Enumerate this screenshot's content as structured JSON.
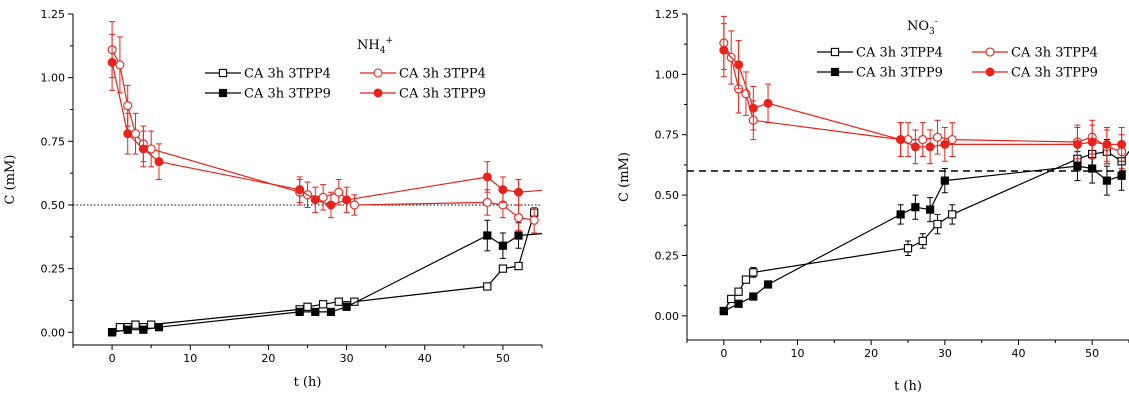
{
  "chart_data": [
    {
      "type": "line",
      "annotation": {
        "main": "NH",
        "sub": "4",
        "sup": "+"
      },
      "xlabel": "t (h)",
      "ylabel": "C (mM)",
      "xlim": [
        -5,
        55
      ],
      "ylim": [
        -0.05,
        1.25
      ],
      "xticks": [
        0,
        10,
        20,
        30,
        40,
        50
      ],
      "yticks": [
        0.0,
        0.25,
        0.5,
        0.75,
        1.0,
        1.25
      ],
      "ytick_labels": [
        "0.00",
        "0.25",
        "0.50",
        "0.75",
        "1.00",
        "1.25"
      ],
      "reference_line": {
        "y": 0.5,
        "style": "dotted"
      },
      "legend": {
        "placement": "top-center",
        "columns": 2
      },
      "series": [
        {
          "name": "CA 3h 3TPP4",
          "color": "#000000",
          "marker": "square-open",
          "x": [
            0,
            1,
            2,
            3,
            4,
            5,
            24,
            25,
            27,
            29,
            31,
            48,
            50,
            52,
            54
          ],
          "y": [
            0.0,
            0.02,
            0.02,
            0.03,
            0.02,
            0.03,
            0.09,
            0.1,
            0.11,
            0.12,
            0.12,
            0.18,
            0.25,
            0.26,
            0.47
          ],
          "err": [
            0.01,
            0.01,
            0.01,
            0.01,
            0.01,
            0.01,
            0.01,
            0.01,
            0.01,
            0.01,
            0.01,
            0.01,
            0.01,
            0.01,
            0.01
          ]
        },
        {
          "name": "CA 3h 3TPP9",
          "color": "#000000",
          "marker": "square-filled",
          "x": [
            0,
            2,
            4,
            6,
            24,
            26,
            28,
            30,
            48,
            50,
            52,
            56
          ],
          "y": [
            0.0,
            0.01,
            0.01,
            0.02,
            0.08,
            0.08,
            0.08,
            0.1,
            0.38,
            0.34,
            0.38,
            0.39
          ],
          "err": [
            0.01,
            0.01,
            0.01,
            0.01,
            0.01,
            0.01,
            0.01,
            0.01,
            0.06,
            0.05,
            0.05,
            0.0
          ]
        },
        {
          "name": "CA 3h 3TPP4",
          "color": "#e8231b",
          "marker": "circle-open",
          "x": [
            0,
            1,
            2,
            3,
            4,
            5,
            24,
            25,
            27,
            29,
            31,
            48,
            50,
            52,
            54
          ],
          "y": [
            1.11,
            1.05,
            0.89,
            0.78,
            0.74,
            0.72,
            0.55,
            0.54,
            0.53,
            0.55,
            0.5,
            0.51,
            0.5,
            0.45,
            0.44
          ],
          "err": [
            0.11,
            0.11,
            0.08,
            0.08,
            0.07,
            0.07,
            0.05,
            0.05,
            0.05,
            0.05,
            0.04,
            0.05,
            0.05,
            0.05,
            0.05
          ]
        },
        {
          "name": "CA 3h 3TPP9",
          "color": "#e8231b",
          "marker": "circle-filled",
          "x": [
            0,
            2,
            4,
            6,
            24,
            26,
            28,
            30,
            48,
            50,
            52,
            56
          ],
          "y": [
            1.06,
            0.78,
            0.72,
            0.67,
            0.56,
            0.52,
            0.5,
            0.52,
            0.61,
            0.56,
            0.55,
            0.56
          ],
          "err": [
            0.11,
            0.08,
            0.07,
            0.07,
            0.05,
            0.05,
            0.05,
            0.05,
            0.06,
            0.05,
            0.05,
            0.0
          ]
        }
      ]
    },
    {
      "type": "line",
      "annotation": {
        "main": "NO",
        "sub": "3",
        "sup": "-"
      },
      "xlabel": "t (h)",
      "ylabel": "C (mM)",
      "xlim": [
        -5,
        55
      ],
      "ylim": [
        -0.1,
        1.25
      ],
      "xticks": [
        0,
        10,
        20,
        30,
        40,
        50
      ],
      "yticks": [
        0.0,
        0.25,
        0.5,
        0.75,
        1.0,
        1.25
      ],
      "ytick_labels": [
        "0.00",
        "0.25",
        "0.50",
        "0.75",
        "1.00",
        "1.25"
      ],
      "reference_line": {
        "y": 0.6,
        "style": "dashed"
      },
      "legend": {
        "placement": "top-right",
        "columns": 2
      },
      "series": [
        {
          "name": "CA 3h 3TPP4",
          "color": "#000000",
          "marker": "square-open",
          "x": [
            0,
            1,
            2,
            3,
            4,
            25,
            27,
            29,
            31,
            48,
            50,
            52,
            54,
            56
          ],
          "y": [
            0.02,
            0.07,
            0.1,
            0.15,
            0.18,
            0.28,
            0.31,
            0.38,
            0.42,
            0.65,
            0.67,
            0.68,
            0.64,
            0.72
          ],
          "err": [
            0.01,
            0.01,
            0.01,
            0.01,
            0.02,
            0.03,
            0.03,
            0.04,
            0.04,
            0.05,
            0.05,
            0.05,
            0.05,
            0.0
          ]
        },
        {
          "name": "CA 3h 3TPP9",
          "color": "#000000",
          "marker": "square-filled",
          "x": [
            0,
            2,
            4,
            6,
            24,
            26,
            28,
            30,
            48,
            50,
            52,
            54
          ],
          "y": [
            0.02,
            0.05,
            0.08,
            0.13,
            0.42,
            0.45,
            0.44,
            0.56,
            0.62,
            0.61,
            0.56,
            0.58
          ],
          "err": [
            0.01,
            0.01,
            0.01,
            0.01,
            0.04,
            0.05,
            0.05,
            0.05,
            0.06,
            0.06,
            0.06,
            0.06
          ]
        },
        {
          "name": "CA 3h 3TPP4",
          "color": "#e8231b",
          "marker": "circle-open",
          "x": [
            0,
            1,
            2,
            3,
            4,
            24,
            25,
            27,
            29,
            31,
            48,
            50,
            52,
            54
          ],
          "y": [
            1.13,
            1.07,
            0.94,
            0.92,
            0.81,
            0.73,
            0.73,
            0.73,
            0.74,
            0.73,
            0.72,
            0.74,
            0.7,
            0.68
          ],
          "err": [
            0.11,
            0.11,
            0.1,
            0.09,
            0.08,
            0.07,
            0.07,
            0.07,
            0.07,
            0.07,
            0.07,
            0.07,
            0.07,
            0.07
          ]
        },
        {
          "name": "CA 3h 3TPP9",
          "color": "#e8231b",
          "marker": "circle-filled",
          "x": [
            0,
            2,
            4,
            6,
            24,
            26,
            28,
            30,
            48,
            50,
            52,
            54
          ],
          "y": [
            1.1,
            1.04,
            0.86,
            0.88,
            0.73,
            0.7,
            0.7,
            0.71,
            0.71,
            0.72,
            0.71,
            0.71
          ],
          "err": [
            0.11,
            0.1,
            0.09,
            0.08,
            0.07,
            0.07,
            0.07,
            0.07,
            0.07,
            0.07,
            0.07,
            0.07
          ]
        }
      ]
    }
  ]
}
